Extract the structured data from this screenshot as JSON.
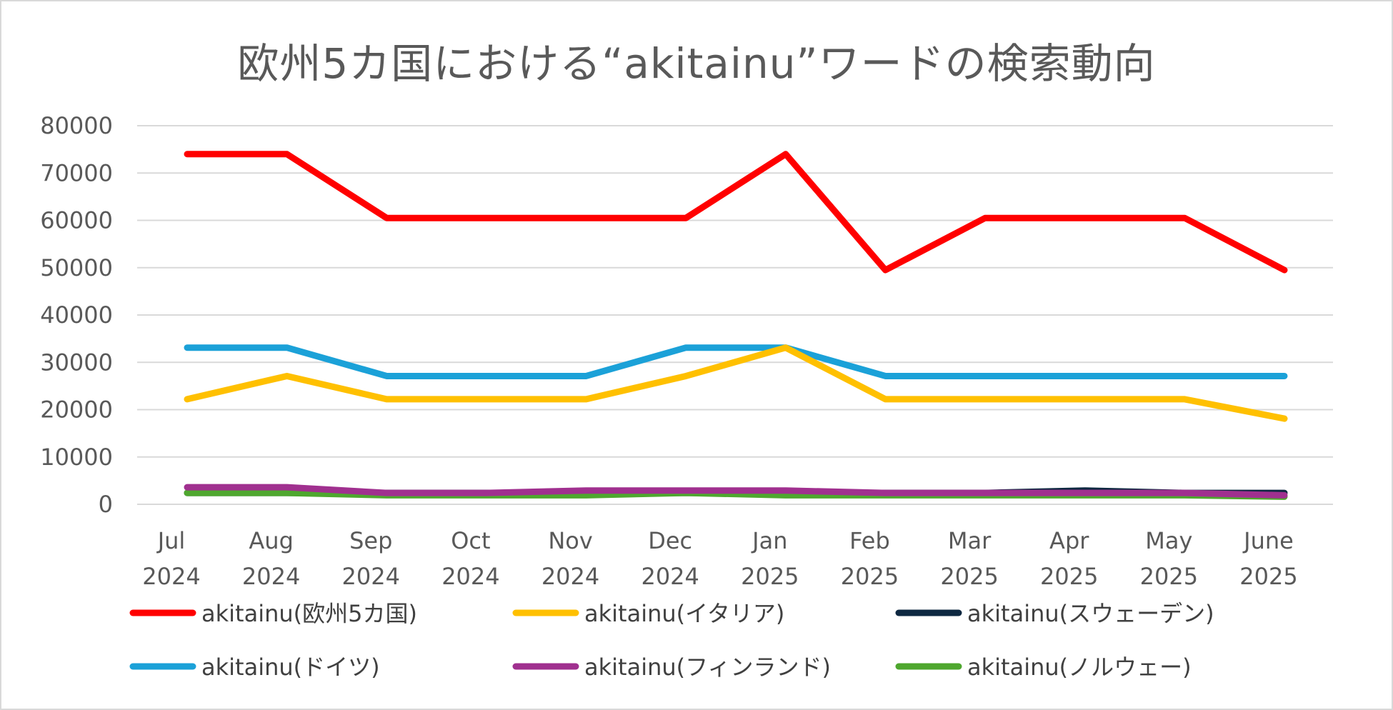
{
  "chart_data": {
    "type": "line",
    "title": "欧州5カ国における“akitainu”ワードの検索動向",
    "xlabel": "",
    "ylabel": "",
    "ylim": [
      0,
      80000
    ],
    "yticks": [
      0,
      10000,
      20000,
      30000,
      40000,
      50000,
      60000,
      70000,
      80000
    ],
    "grid": true,
    "legend_position": "bottom",
    "categories": [
      [
        "Jul",
        "2024"
      ],
      [
        "Aug",
        "2024"
      ],
      [
        "Sep",
        "2024"
      ],
      [
        "Oct",
        "2024"
      ],
      [
        "Nov",
        "2024"
      ],
      [
        "Dec",
        "2024"
      ],
      [
        "Jan",
        "2025"
      ],
      [
        "Feb",
        "2025"
      ],
      [
        "Mar",
        "2025"
      ],
      [
        "Apr",
        "2025"
      ],
      [
        "May",
        "2025"
      ],
      [
        "June",
        "2025"
      ]
    ],
    "series": [
      {
        "name": "akitainu(欧州5カ国)",
        "color": "#ff0000",
        "values": [
          74000,
          74000,
          60500,
          60500,
          60500,
          60500,
          74000,
          49500,
          60500,
          60500,
          60500,
          49500
        ]
      },
      {
        "name": "akitainu(イタリア)",
        "color": "#ffc000",
        "values": [
          22200,
          27100,
          22200,
          22200,
          22200,
          27100,
          33100,
          22200,
          22200,
          22200,
          22200,
          18100
        ]
      },
      {
        "name": "akitainu(スウェーデン)",
        "color": "#0e2841",
        "values": [
          2400,
          2400,
          2400,
          2400,
          2400,
          2400,
          2400,
          2400,
          2400,
          2900,
          2400,
          2400
        ]
      },
      {
        "name": "akitainu(ドイツ)",
        "color": "#1ba1d8",
        "values": [
          33100,
          33100,
          27100,
          27100,
          27100,
          33100,
          33100,
          27100,
          27100,
          27100,
          27100,
          27100
        ]
      },
      {
        "name": "akitainu(フィンランド)",
        "color": "#a0308f",
        "values": [
          3600,
          3600,
          2400,
          2400,
          2900,
          2900,
          2900,
          2400,
          2400,
          2400,
          2400,
          1900
        ]
      },
      {
        "name": "akitainu(ノルウェー)",
        "color": "#4ea72e",
        "values": [
          2400,
          2400,
          1900,
          1900,
          1900,
          2400,
          1900,
          1900,
          1900,
          1900,
          1900,
          1600
        ]
      }
    ],
    "draw_order": [
      2,
      5,
      4,
      3,
      1,
      0
    ]
  }
}
